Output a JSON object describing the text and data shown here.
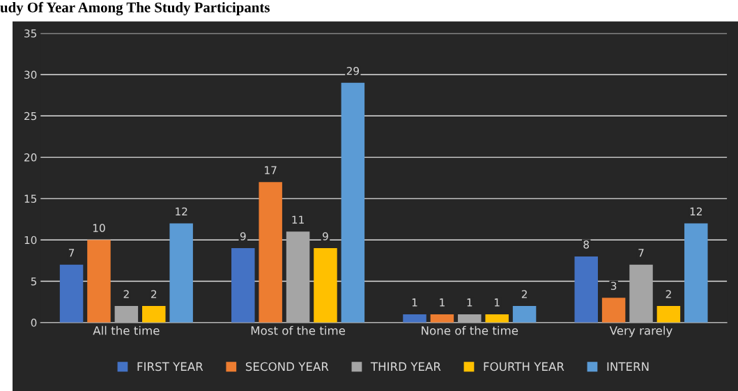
{
  "chart_data": {
    "type": "bar",
    "title": "udy Of Year Among The Study Participants",
    "categories": [
      "All the time",
      "Most of the time",
      "None of the time",
      "Very rarely"
    ],
    "series": [
      {
        "name": "FIRST YEAR",
        "color": "#4472c4",
        "values": [
          7,
          9,
          1,
          8
        ]
      },
      {
        "name": "SECOND YEAR",
        "color": "#ed7d31",
        "values": [
          10,
          17,
          1,
          3
        ]
      },
      {
        "name": "THIRD YEAR",
        "color": "#a5a5a5",
        "values": [
          2,
          11,
          1,
          7
        ]
      },
      {
        "name": "FOURTH YEAR",
        "color": "#ffc000",
        "values": [
          2,
          9,
          1,
          2
        ]
      },
      {
        "name": "INTERN",
        "color": "#5b9bd5",
        "values": [
          12,
          29,
          2,
          12
        ]
      }
    ],
    "ylim": [
      0,
      35
    ],
    "yticks": [
      0,
      5,
      10,
      15,
      20,
      25,
      30,
      35
    ],
    "grid": "y",
    "legend": "bottom",
    "data_labels": true
  }
}
